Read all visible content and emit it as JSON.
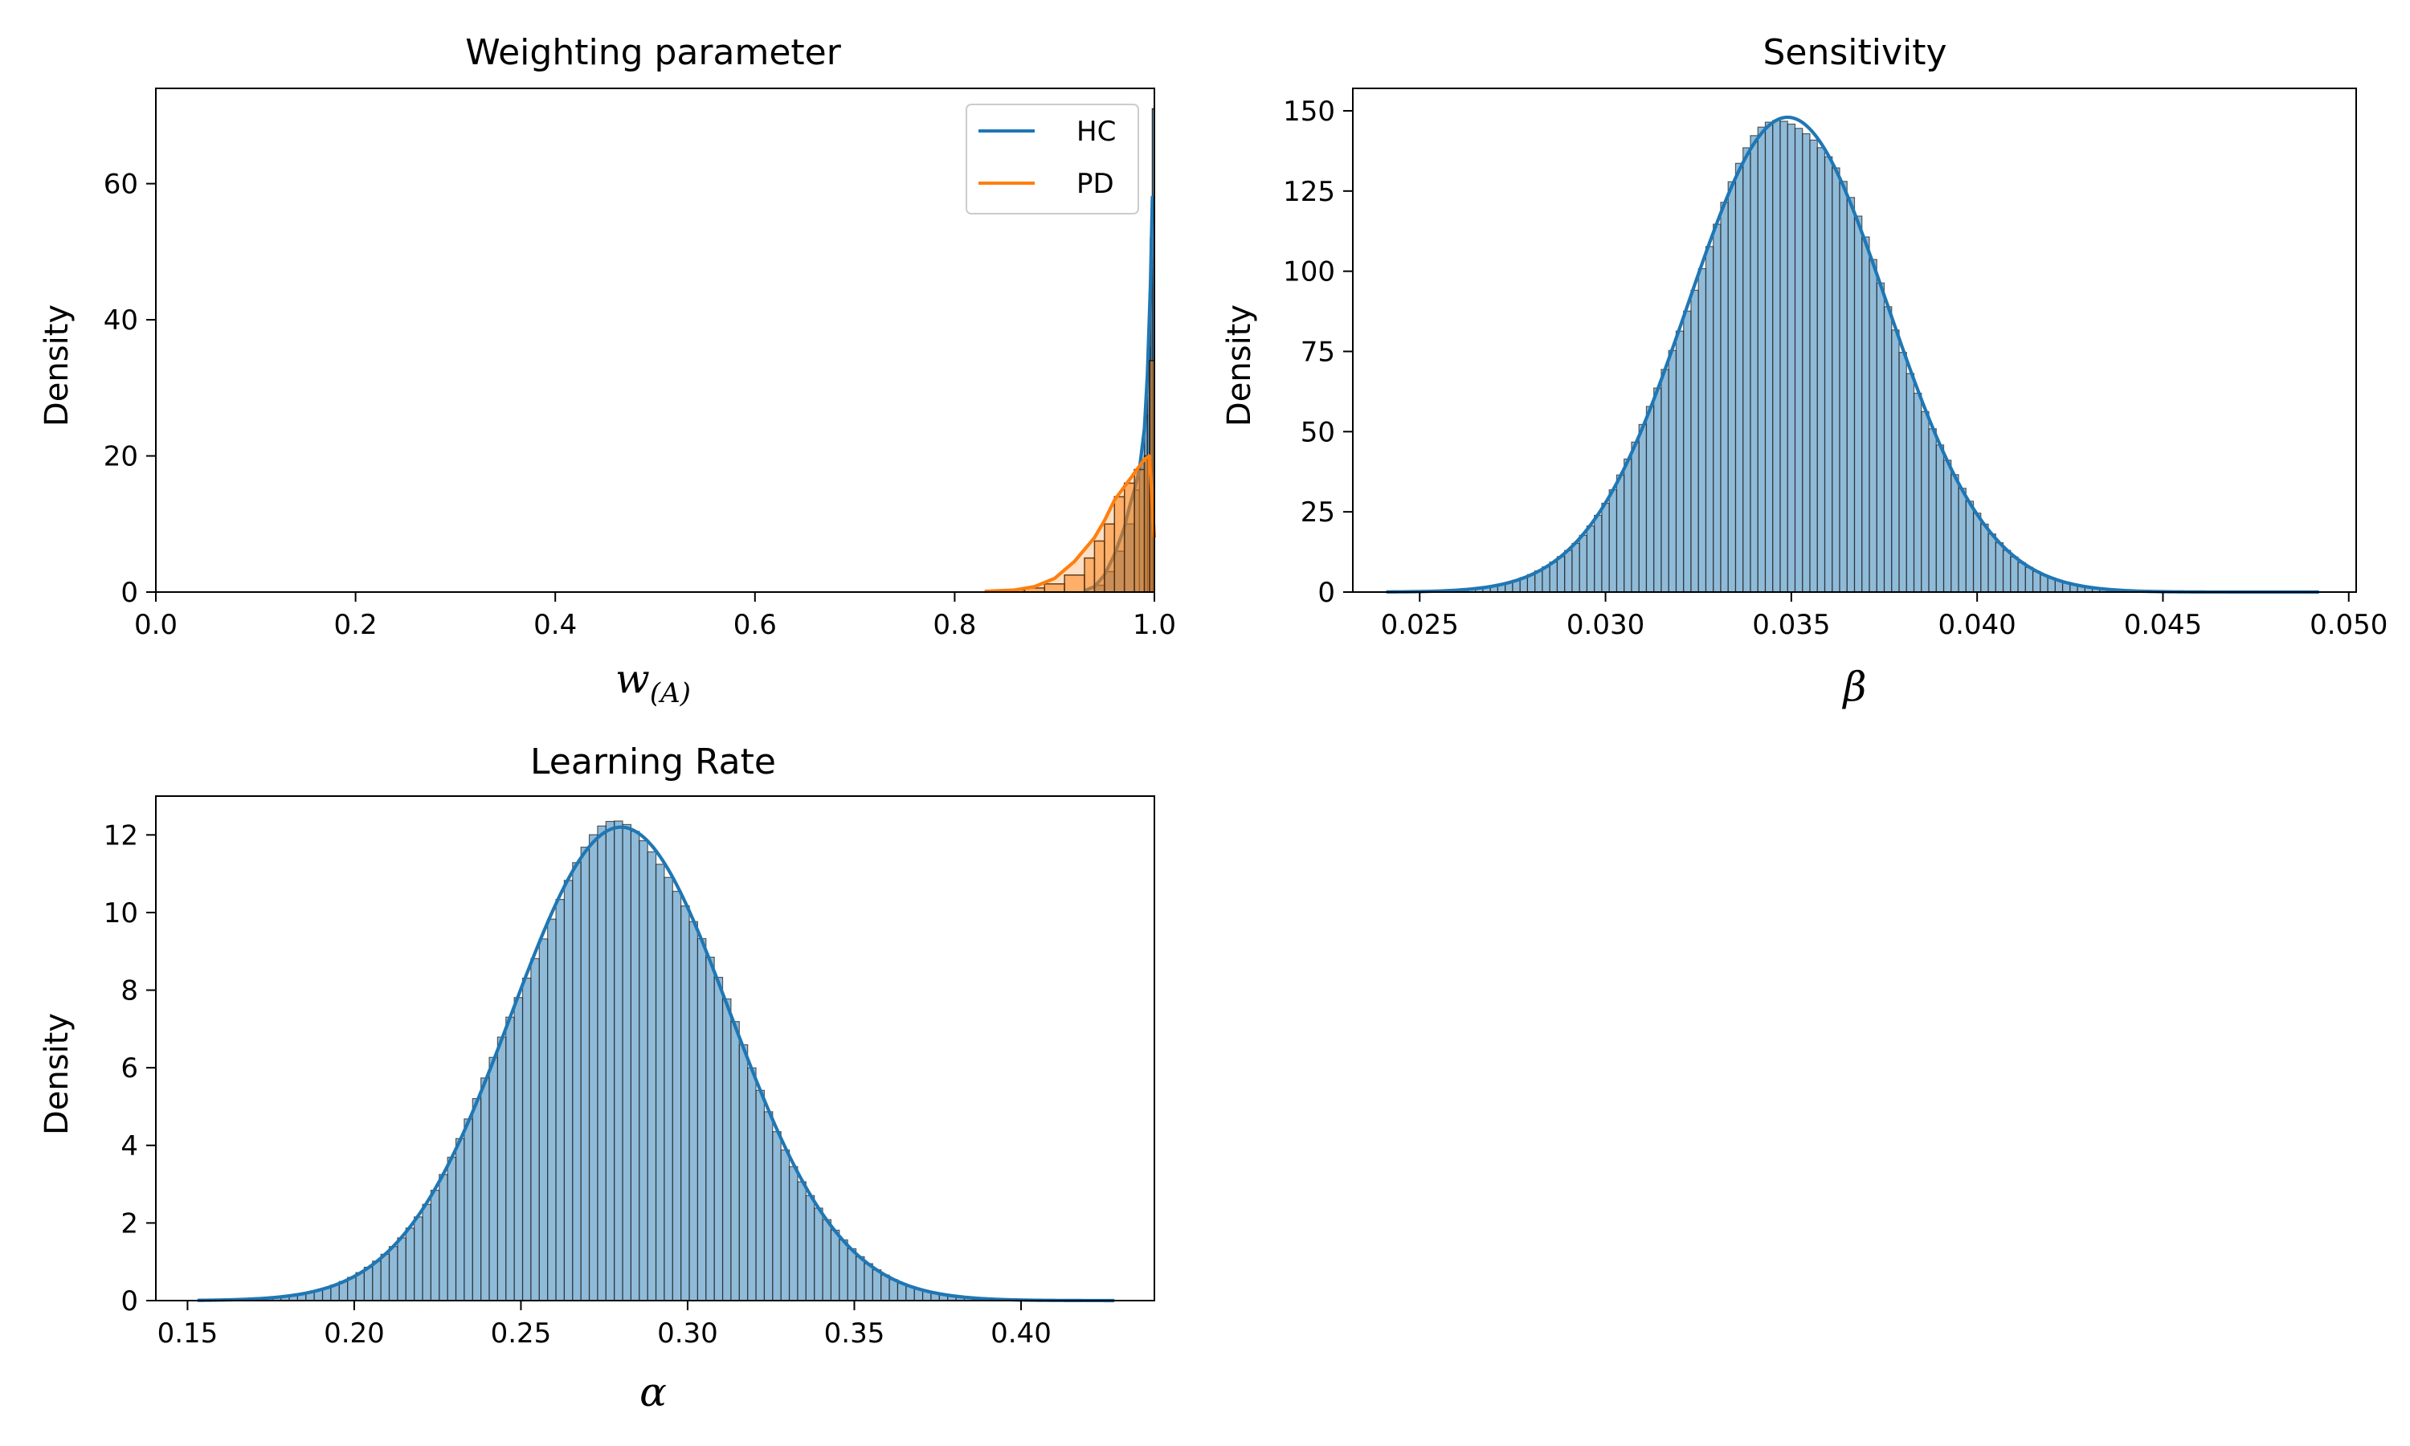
{
  "chart_data": [
    {
      "type": "histogram",
      "title": "Weighting parameter",
      "xlabel": "w",
      "xlabel_subscript": "(A)",
      "ylabel": "Density",
      "xlim": [
        0.0,
        1.0
      ],
      "ylim": [
        0,
        74
      ],
      "xticks": [
        0.0,
        0.2,
        0.4,
        0.6,
        0.8,
        1.0
      ],
      "xtick_labels": [
        "0.0",
        "0.2",
        "0.4",
        "0.6",
        "0.8",
        "1.0"
      ],
      "yticks": [
        0,
        20,
        40,
        60
      ],
      "ytick_labels": [
        "0",
        "20",
        "40",
        "60"
      ],
      "legend_position": "top-right",
      "series": [
        {
          "name": "HC",
          "color": "#1f77b4",
          "curve_x": [
            0.93,
            0.94,
            0.95,
            0.96,
            0.97,
            0.975,
            0.98,
            0.985,
            0.99,
            0.993,
            0.996,
            0.998,
            1.0
          ],
          "curve_y": [
            0.2,
            0.8,
            2.5,
            5.5,
            9.5,
            12.5,
            15,
            18,
            24,
            32,
            45,
            58,
            58
          ],
          "bins_x": [
            0.94,
            0.95,
            0.96,
            0.97,
            0.98,
            0.985,
            0.99,
            0.993,
            0.996,
            0.998
          ],
          "bins_y": [
            1,
            3,
            6,
            10,
            15,
            19,
            26,
            36,
            52,
            71
          ]
        },
        {
          "name": "PD",
          "color": "#ff7f0e",
          "curve_x": [
            0.83,
            0.86,
            0.88,
            0.9,
            0.92,
            0.94,
            0.95,
            0.96,
            0.97,
            0.98,
            0.99,
            0.995,
            1.0
          ],
          "curve_y": [
            0.1,
            0.3,
            0.8,
            2,
            4.5,
            8,
            10.5,
            13.5,
            15.5,
            17.5,
            19.5,
            20,
            8
          ],
          "bins_x": [
            0.85,
            0.87,
            0.89,
            0.91,
            0.93,
            0.94,
            0.95,
            0.96,
            0.97,
            0.98,
            0.99,
            0.995
          ],
          "bins_y": [
            0.3,
            0.6,
            1.2,
            2.5,
            5,
            7.5,
            10,
            14,
            16,
            18,
            20,
            34
          ]
        }
      ]
    },
    {
      "type": "histogram",
      "title": "Sensitivity",
      "xlabel": "β",
      "ylabel": "Density",
      "xlim": [
        0.0232,
        0.0502
      ],
      "ylim": [
        0,
        157
      ],
      "xticks": [
        0.025,
        0.03,
        0.035,
        0.04,
        0.045,
        0.05
      ],
      "xtick_labels": [
        "0.025",
        "0.030",
        "0.035",
        "0.040",
        "0.045",
        "0.050"
      ],
      "yticks": [
        0,
        25,
        50,
        75,
        100,
        125,
        150
      ],
      "ytick_labels": [
        "0",
        "25",
        "50",
        "75",
        "100",
        "125",
        "150"
      ],
      "series": [
        {
          "color": "#1f77b4",
          "distribution": "normal",
          "mean": 0.0349,
          "sd": 0.00268,
          "peak": 148,
          "x_range": [
            0.0241,
            0.0492
          ],
          "bin_width": 0.0002
        }
      ]
    },
    {
      "type": "histogram",
      "title": "Learning Rate",
      "xlabel": "α",
      "ylabel": "Density",
      "xlim": [
        0.1405,
        0.44
      ],
      "ylim": [
        0,
        13
      ],
      "xticks": [
        0.15,
        0.2,
        0.25,
        0.3,
        0.35,
        0.4
      ],
      "xtick_labels": [
        "0.15",
        "0.20",
        "0.25",
        "0.30",
        "0.35",
        "0.40"
      ],
      "yticks": [
        0,
        2,
        4,
        6,
        8,
        10,
        12
      ],
      "ytick_labels": [
        "0",
        "2",
        "4",
        "6",
        "8",
        "10",
        "12"
      ],
      "series": [
        {
          "color": "#1f77b4",
          "distribution": "normal",
          "mean": 0.28,
          "sd": 0.0328,
          "peak": 12.2,
          "x_range": [
            0.153,
            0.428
          ],
          "bin_width": 0.0025
        }
      ]
    }
  ]
}
